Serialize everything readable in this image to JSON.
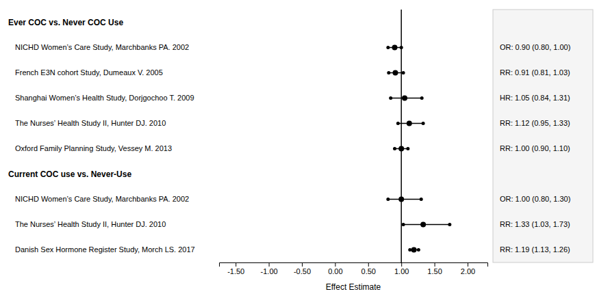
{
  "chart_data": {
    "type": "forest",
    "xlabel": "Effect Estimate",
    "xlim": [
      -1.75,
      2.3
    ],
    "xticks": [
      {
        "value": -1.5,
        "label": "-1.50"
      },
      {
        "value": -1.0,
        "label": "-1.00"
      },
      {
        "value": -0.5,
        "label": "-0.50"
      },
      {
        "value": 0.0,
        "label": "0.00"
      },
      {
        "value": 0.5,
        "label": "0.50"
      },
      {
        "value": 1.0,
        "label": "1.00"
      },
      {
        "value": 1.5,
        "label": "1.50"
      },
      {
        "value": 2.0,
        "label": "2.00"
      }
    ],
    "reference_line": 1.0,
    "color": "#000000",
    "groups": [
      {
        "header": "Ever COC vs. Never COC Use",
        "studies": [
          {
            "label": "NICHD Women’s Care Study, Marchbanks PA. 2002",
            "estimate": 0.9,
            "ci_low": 0.8,
            "ci_high": 1.0,
            "result_text": "OR: 0.90 (0.80, 1.00)"
          },
          {
            "label": "French E3N cohort Study, Dumeaux V. 2005",
            "estimate": 0.91,
            "ci_low": 0.81,
            "ci_high": 1.03,
            "result_text": "RR: 0.91 (0.81, 1.03)"
          },
          {
            "label": "Shanghai Women’s Health Study, Dorjgochoo T. 2009",
            "estimate": 1.05,
            "ci_low": 0.84,
            "ci_high": 1.31,
            "result_text": "HR: 1.05 (0.84, 1.31)"
          },
          {
            "label": "The Nurses’ Health Study II, Hunter DJ. 2010",
            "estimate": 1.12,
            "ci_low": 0.95,
            "ci_high": 1.33,
            "result_text": "RR: 1.12 (0.95, 1.33)"
          },
          {
            "label": "Oxford Family Planning Study, Vessey M. 2013",
            "estimate": 1.0,
            "ci_low": 0.9,
            "ci_high": 1.1,
            "result_text": "RR: 1.00 (0.90, 1.10)"
          }
        ]
      },
      {
        "header": "Current COC use vs. Never-Use",
        "studies": [
          {
            "label": "NICHD Women’s Care Study, Marchbanks PA. 2002",
            "estimate": 1.0,
            "ci_low": 0.8,
            "ci_high": 1.3,
            "result_text": "OR: 1.00 (0.80, 1.30)"
          },
          {
            "label": "The Nurses’ Health Study II, Hunter DJ. 2010",
            "estimate": 1.33,
            "ci_low": 1.03,
            "ci_high": 1.73,
            "result_text": "RR: 1.33 (1.03, 1.73)"
          },
          {
            "label": "Danish Sex Hormone Register Study, Morch LS. 2017",
            "estimate": 1.19,
            "ci_low": 1.13,
            "ci_high": 1.26,
            "result_text": "RR: 1.19 (1.13, 1.26)"
          }
        ]
      }
    ]
  }
}
